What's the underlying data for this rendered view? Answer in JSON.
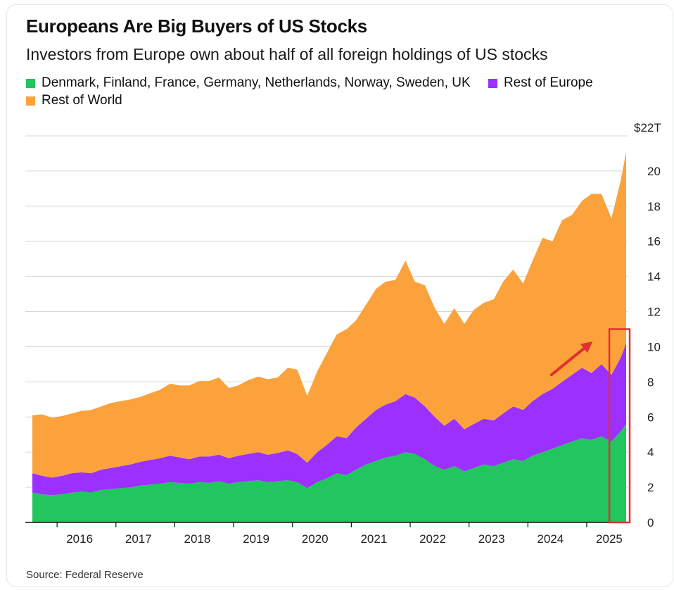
{
  "chart_data": {
    "type": "area",
    "stacked": true,
    "title": "Europeans Are Big Buyers of US Stocks",
    "subtitle": "Investors from Europe own about half of all foreign holdings of US stocks",
    "source": "Source: Federal Reserve",
    "y_unit_label": "$22T",
    "ylim": [
      0,
      22
    ],
    "yticks": [
      0,
      2,
      4,
      6,
      8,
      10,
      12,
      14,
      16,
      18,
      20
    ],
    "xlim": [
      2015.58,
      2025.67
    ],
    "xticks": [
      {
        "value": 2016,
        "label": "2016"
      },
      {
        "value": 2017,
        "label": "2017"
      },
      {
        "value": 2018,
        "label": "2018"
      },
      {
        "value": 2019,
        "label": "2019"
      },
      {
        "value": 2020,
        "label": "2020"
      },
      {
        "value": 2021,
        "label": "2021"
      },
      {
        "value": 2022,
        "label": "2022"
      },
      {
        "value": 2023,
        "label": "2023"
      },
      {
        "value": 2024,
        "label": "2024"
      },
      {
        "value": 2025,
        "label": "2025"
      }
    ],
    "grid": true,
    "legend_position": "top-left",
    "x": [
      2015.58,
      2015.75,
      2015.92,
      2016.08,
      2016.25,
      2016.42,
      2016.58,
      2016.75,
      2016.92,
      2017.08,
      2017.25,
      2017.42,
      2017.58,
      2017.75,
      2017.92,
      2018.08,
      2018.25,
      2018.42,
      2018.58,
      2018.75,
      2018.92,
      2019.08,
      2019.25,
      2019.42,
      2019.58,
      2019.75,
      2019.92,
      2020.08,
      2020.25,
      2020.42,
      2020.58,
      2020.75,
      2020.92,
      2021.08,
      2021.25,
      2021.42,
      2021.58,
      2021.75,
      2021.92,
      2022.08,
      2022.25,
      2022.42,
      2022.58,
      2022.75,
      2022.92,
      2023.08,
      2023.25,
      2023.42,
      2023.58,
      2023.75,
      2023.92,
      2024.08,
      2024.25,
      2024.42,
      2024.58,
      2024.75,
      2024.92,
      2025.08,
      2025.25,
      2025.42,
      2025.58,
      2025.67
    ],
    "series": [
      {
        "name": "Denmark, Finland, France, Germany, Netherlands, Norway, Sweden, UK",
        "color": "#22c55e",
        "values": [
          1.7,
          1.6,
          1.55,
          1.6,
          1.7,
          1.75,
          1.7,
          1.85,
          1.9,
          1.95,
          2.0,
          2.1,
          2.15,
          2.2,
          2.3,
          2.25,
          2.2,
          2.3,
          2.25,
          2.35,
          2.2,
          2.3,
          2.35,
          2.4,
          2.3,
          2.35,
          2.4,
          2.3,
          1.95,
          2.3,
          2.5,
          2.8,
          2.7,
          3.0,
          3.3,
          3.5,
          3.7,
          3.8,
          4.0,
          3.9,
          3.6,
          3.2,
          3.0,
          3.2,
          2.9,
          3.1,
          3.3,
          3.2,
          3.4,
          3.6,
          3.5,
          3.8,
          4.0,
          4.2,
          4.4,
          4.6,
          4.8,
          4.7,
          4.9,
          4.6,
          5.2,
          5.6
        ]
      },
      {
        "name": "Rest of Europe",
        "color": "#9b30ff",
        "values": [
          1.1,
          1.05,
          1.0,
          1.05,
          1.1,
          1.1,
          1.1,
          1.15,
          1.2,
          1.25,
          1.3,
          1.35,
          1.4,
          1.45,
          1.5,
          1.45,
          1.4,
          1.45,
          1.5,
          1.5,
          1.45,
          1.5,
          1.55,
          1.6,
          1.55,
          1.6,
          1.7,
          1.6,
          1.45,
          1.7,
          1.9,
          2.1,
          2.1,
          2.4,
          2.6,
          2.9,
          3.0,
          3.1,
          3.3,
          3.2,
          3.0,
          2.8,
          2.5,
          2.7,
          2.4,
          2.5,
          2.6,
          2.6,
          2.8,
          3.0,
          2.9,
          3.1,
          3.3,
          3.4,
          3.6,
          3.8,
          4.0,
          3.8,
          4.1,
          3.8,
          4.2,
          4.6
        ]
      },
      {
        "name": "Rest of World",
        "color": "#fba23c",
        "values": [
          3.3,
          3.5,
          3.4,
          3.4,
          3.4,
          3.5,
          3.6,
          3.6,
          3.7,
          3.7,
          3.7,
          3.7,
          3.8,
          3.9,
          4.1,
          4.1,
          4.2,
          4.3,
          4.3,
          4.4,
          4.0,
          4.0,
          4.2,
          4.3,
          4.3,
          4.3,
          4.7,
          4.8,
          3.8,
          4.6,
          5.2,
          5.8,
          6.2,
          6.1,
          6.5,
          6.9,
          7.0,
          6.9,
          7.6,
          6.6,
          6.9,
          6.2,
          5.8,
          6.3,
          6.0,
          6.5,
          6.6,
          6.9,
          7.5,
          7.8,
          7.2,
          8.0,
          8.9,
          8.4,
          9.2,
          9.1,
          9.5,
          10.2,
          9.7,
          8.9,
          10.1,
          10.9
        ]
      }
    ],
    "highlight": {
      "x_start": 2025.42,
      "x_end": 2025.67,
      "y_max": 11.0,
      "color": "#e0312f"
    },
    "arrow": {
      "from": [
        2024.4,
        8.4
      ],
      "to": [
        2025.1,
        10.3
      ],
      "color": "#e0312f"
    }
  },
  "legend_rest_of_world": "Rest of World"
}
